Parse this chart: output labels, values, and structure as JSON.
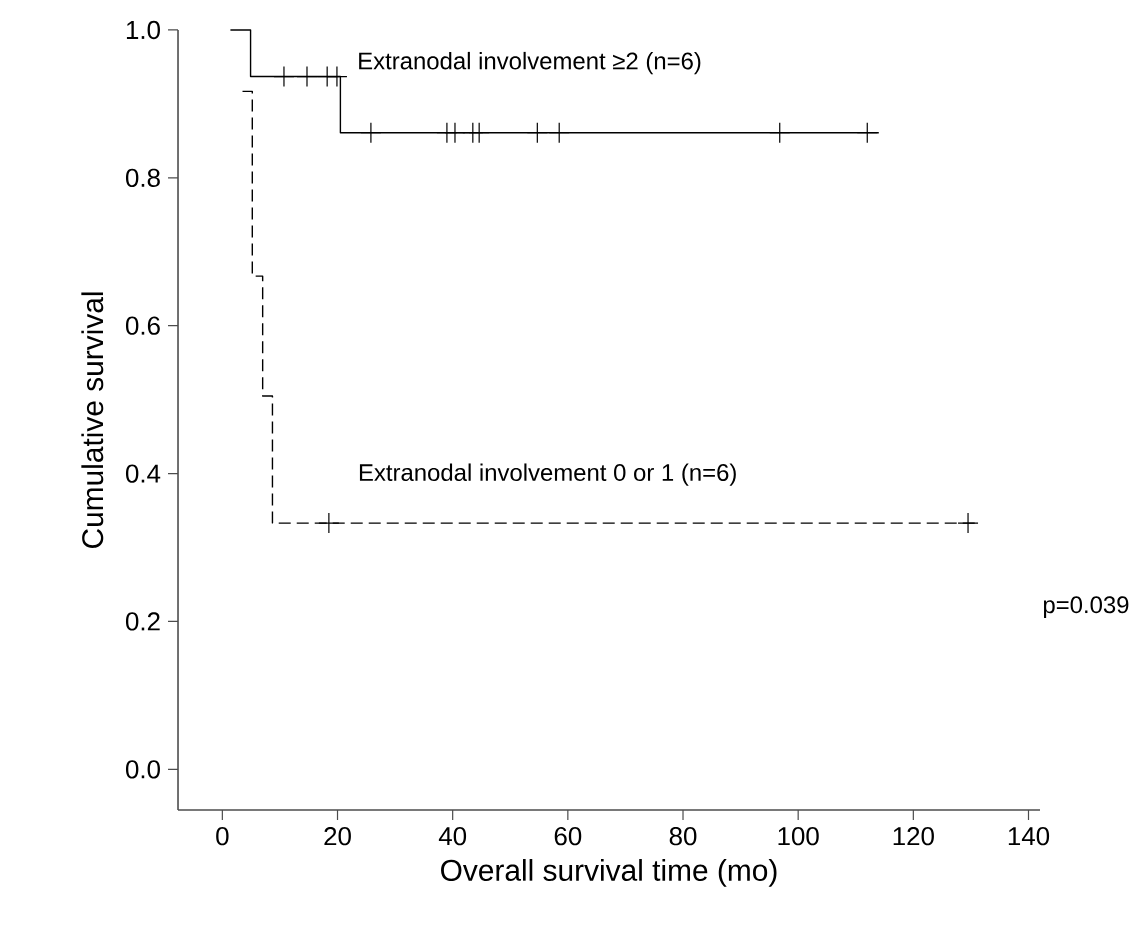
{
  "chart_data": {
    "type": "step",
    "xlabel": "Overall survival time (mo)",
    "ylabel": "Cumulative survival",
    "xlim": [
      -7.7,
      142
    ],
    "ylim": [
      -0.055,
      1.0
    ],
    "xticks": [
      0,
      20,
      40,
      60,
      80,
      100,
      120,
      140
    ],
    "yticks": [
      {
        "value": 0,
        "label": "0.0"
      },
      {
        "value": 0.2,
        "label": "0.2"
      },
      {
        "value": 0.4,
        "label": "0.4"
      },
      {
        "value": 0.6,
        "label": "0.6"
      },
      {
        "value": 0.8,
        "label": "0.8"
      },
      {
        "value": 1,
        "label": "1.0"
      }
    ],
    "series": [
      {
        "color": "#000000",
        "line_style": "solid",
        "x": [
          1.4,
          4.9,
          20.5,
          114
        ],
        "values": [
          1.0,
          0.937,
          0.861,
          0.861
        ]
      },
      {
        "type": "scatter",
        "marker": "cross",
        "color": "#000000",
        "x": [
          10.7,
          14.7,
          18.2,
          19.9,
          25.8,
          39,
          40.4,
          43.5,
          44.6,
          54.7,
          58.5,
          96.8,
          112
        ],
        "values": [
          0.937,
          0.937,
          0.937,
          0.937,
          0.861,
          0.861,
          0.861,
          0.861,
          0.861,
          0.861,
          0.861,
          0.861,
          0.861
        ]
      },
      {
        "color": "#000000",
        "line_style": "dashed",
        "x": [
          3.5,
          5.2,
          7,
          8.7,
          131
        ],
        "values": [
          0.917,
          0.667,
          0.505,
          0.333,
          0.333
        ]
      },
      {
        "type": "scatter",
        "marker": "cross",
        "color": "#000000",
        "x": [
          18.5,
          129.5
        ],
        "values": [
          0.333,
          0.333
        ]
      }
    ],
    "annotations": [
      {
        "text": "Extranodal involvement ≥2 (n=6)",
        "x": 23,
        "y": 0.937
      },
      "Extranodal involvement 0 or 1 (n=6)",
      "p=0.039"
    ]
  }
}
